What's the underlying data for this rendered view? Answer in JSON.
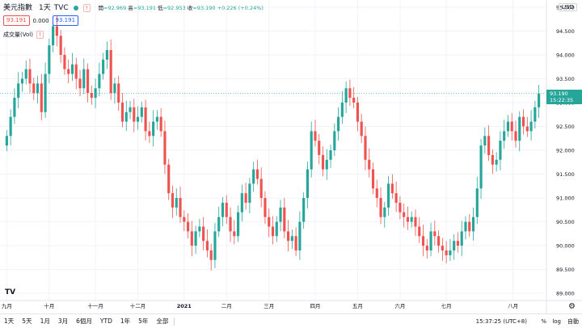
{
  "legend": {
    "symbol": "美元指數",
    "interval": "1天",
    "exchange": "TVC",
    "alert_icon": "alert-icon",
    "ohlc": {
      "open_label": "開",
      "open": "=92.969",
      "high_label": "高",
      "high": "=93.191",
      "low_label": "低",
      "low": "=92.953",
      "close_label": "收",
      "close": "=93.190",
      "change": "+0.226 (+0.24%)"
    },
    "sell_price": "93.191",
    "spread": "0.000",
    "buy_price": "93.191"
  },
  "volume": {
    "label": "成交量(Vol)",
    "alert_icon": "alert-icon"
  },
  "axis": {
    "currency": "USD",
    "price_tag_value": "93.190",
    "price_tag_time": "15:22:35",
    "y_ticks": [
      "95.000",
      "94.500",
      "94.000",
      "93.500",
      "93.000",
      "92.500",
      "92.000",
      "91.500",
      "91.000",
      "90.500",
      "90.000",
      "89.500",
      "89.000"
    ],
    "x_ticks": [
      "九月",
      "十月",
      "十一月",
      "十二月",
      "2021",
      "二月",
      "三月",
      "四月",
      "五月",
      "六月",
      "七月",
      "八月"
    ]
  },
  "toolbar": {
    "timeframes": [
      "1天",
      "5天",
      "1月",
      "3月",
      "6個月",
      "YTD",
      "1年",
      "5年",
      "全部"
    ],
    "clock": "15:37:25 (UTC+8)",
    "percent": "%",
    "log": "log",
    "auto": "自動",
    "settings_icon": "gear-icon",
    "tv_logo": "TV"
  },
  "colors": {
    "up": "#26a69a",
    "down": "#ef5350",
    "grid": "#f0f3fa",
    "text": "#131722"
  },
  "chart_data": {
    "type": "candlestick",
    "ylim": [
      88.85,
      95.15
    ],
    "x_labels": [
      "九月",
      "十月",
      "十一月",
      "十二月",
      "2021",
      "二月",
      "三月",
      "四月",
      "五月",
      "六月",
      "七月",
      "八月"
    ],
    "series": [
      {
        "name": "美元指數",
        "close": [
          92.3,
          92.7,
          93.1,
          93.4,
          93.5,
          93.7,
          93.4,
          93.2,
          93.4,
          92.8,
          93.6,
          94.2,
          94.6,
          94.4,
          94.0,
          93.7,
          93.6,
          93.8,
          93.5,
          93.3,
          93.7,
          93.2,
          93.1,
          93.3,
          93.6,
          93.9,
          94.1,
          93.2,
          93.4,
          93.0,
          92.6,
          92.8,
          92.9,
          92.6,
          92.7,
          92.9,
          92.4,
          92.3,
          92.6,
          92.7,
          92.4,
          91.7,
          91.1,
          90.8,
          91.0,
          90.6,
          90.5,
          90.3,
          90.0,
          90.3,
          90.4,
          90.1,
          89.9,
          89.7,
          90.3,
          90.6,
          90.9,
          90.6,
          90.3,
          90.2,
          90.7,
          91.1,
          90.9,
          91.3,
          91.6,
          91.4,
          91.0,
          90.6,
          90.4,
          90.2,
          90.5,
          90.8,
          90.3,
          90.1,
          90.2,
          89.9,
          90.5,
          91.0,
          91.6,
          92.4,
          92.2,
          91.9,
          91.6,
          91.8,
          92.0,
          92.4,
          92.7,
          93.0,
          93.3,
          93.1,
          93.0,
          92.6,
          92.3,
          91.8,
          91.6,
          91.2,
          91.0,
          90.6,
          90.8,
          91.3,
          91.1,
          90.9,
          90.7,
          90.6,
          90.5,
          90.6,
          90.4,
          90.2,
          90.0,
          89.9,
          90.3,
          90.2,
          90.0,
          89.9,
          89.8,
          89.9,
          90.1,
          90.0,
          90.3,
          90.5,
          90.3,
          90.6,
          91.2,
          92.1,
          92.3,
          91.9,
          91.7,
          91.8,
          92.2,
          92.4,
          92.6,
          92.4,
          92.2,
          92.7,
          92.5,
          92.4,
          92.6,
          92.9,
          93.19
        ]
      }
    ]
  }
}
